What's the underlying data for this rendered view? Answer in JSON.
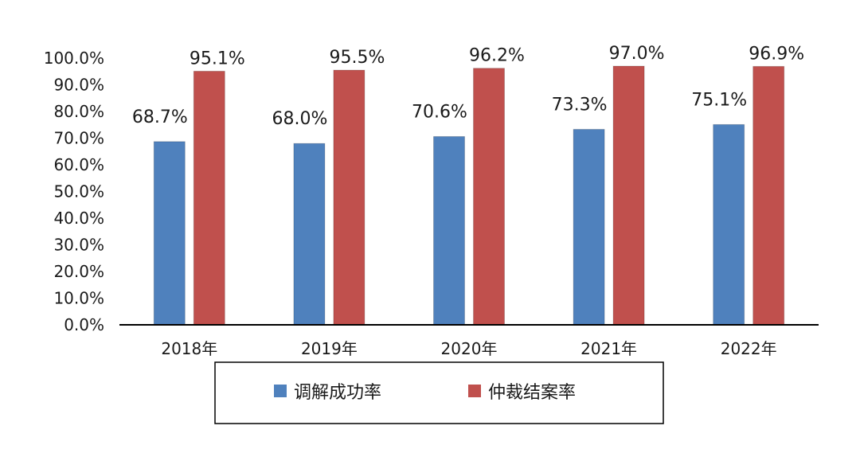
{
  "chart_data": {
    "type": "bar",
    "categories": [
      "2018年",
      "2019年",
      "2020年",
      "2021年",
      "2022年"
    ],
    "series": [
      {
        "name": "调解成功率",
        "values": [
          68.7,
          68.0,
          70.6,
          73.3,
          75.1
        ],
        "labels": [
          "68.7%",
          "68.0%",
          "70.6%",
          "73.3%",
          "75.1%"
        ],
        "color": "#4f81bd"
      },
      {
        "name": "仲裁结案率",
        "values": [
          95.1,
          95.5,
          96.2,
          97.0,
          96.9
        ],
        "labels": [
          "95.1%",
          "95.5%",
          "96.2%",
          "97.0%",
          "96.9%"
        ],
        "color": "#c0504d"
      }
    ],
    "ylim": [
      0,
      100
    ],
    "yticks": [
      "0.0%",
      "10.0%",
      "20.0%",
      "30.0%",
      "40.0%",
      "50.0%",
      "60.0%",
      "70.0%",
      "80.0%",
      "90.0%",
      "100.0%"
    ],
    "grid": false,
    "legend_position": "bottom"
  }
}
